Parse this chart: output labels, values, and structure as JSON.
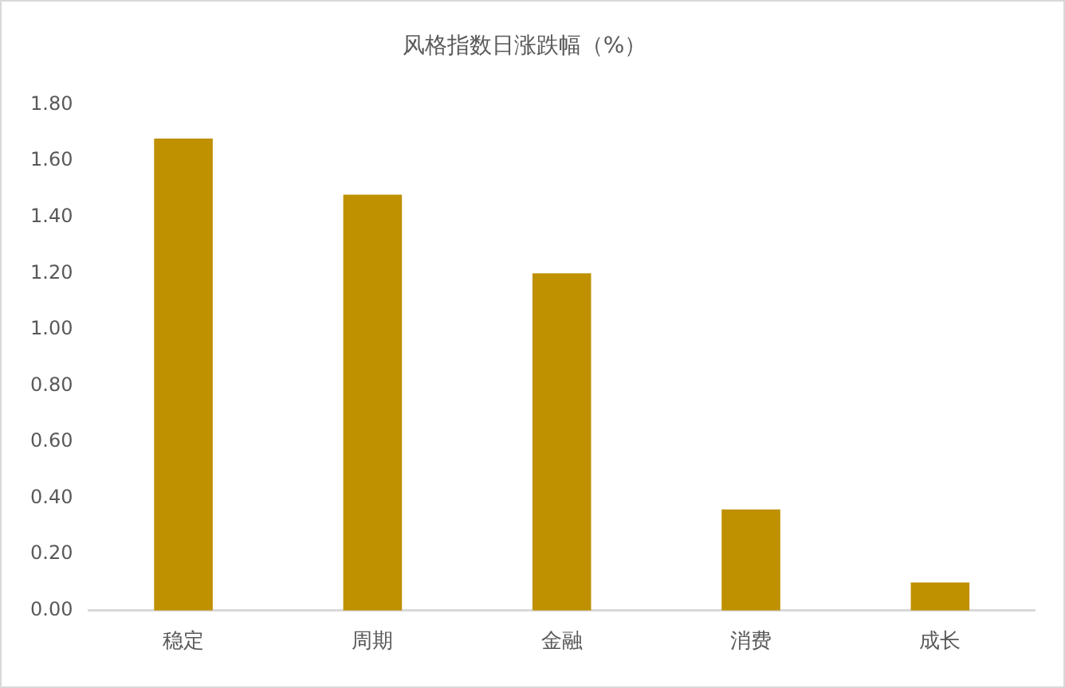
{
  "chart_data": {
    "type": "bar",
    "title": "风格指数日涨跌幅（%）",
    "categories": [
      "稳定",
      "周期",
      "金融",
      "消费",
      "成长"
    ],
    "values": [
      1.68,
      1.48,
      1.2,
      0.36,
      0.1
    ],
    "color": "#bf9000",
    "ylim": [
      0,
      1.8
    ],
    "yticks": [
      {
        "value": 0,
        "label": "0.00"
      },
      {
        "value": 0.2,
        "label": "0.20"
      },
      {
        "value": 0.4,
        "label": "0.40"
      },
      {
        "value": 0.6,
        "label": "0.60"
      },
      {
        "value": 0.8,
        "label": "0.80"
      },
      {
        "value": 1.0,
        "label": "1.00"
      },
      {
        "value": 1.2,
        "label": "1.20"
      },
      {
        "value": 1.4,
        "label": "1.40"
      },
      {
        "value": 1.6,
        "label": "1.60"
      },
      {
        "value": 1.8,
        "label": "1.80"
      }
    ],
    "grid": false
  }
}
